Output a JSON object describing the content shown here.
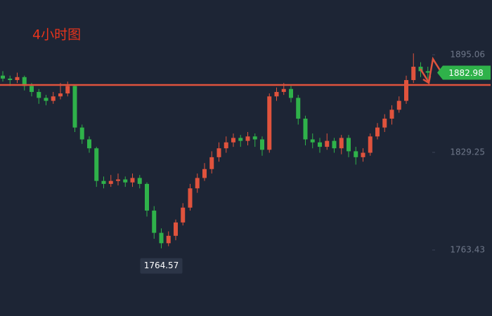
{
  "chart_data": {
    "type": "candlestick",
    "title": "4小时图",
    "open": [
      1881,
      1879,
      1878,
      1880,
      1874,
      1870,
      1866,
      1864,
      1867,
      1869,
      1874,
      1846,
      1838,
      1832,
      1810,
      1808,
      1810,
      1811,
      1809,
      1812,
      1808,
      1790,
      1775,
      1768,
      1773,
      1782,
      1792,
      1805,
      1812,
      1818,
      1826,
      1832,
      1836,
      1839,
      1837,
      1840,
      1838,
      1831,
      1867,
      1870,
      1872,
      1866,
      1852,
      1838,
      1836,
      1833,
      1837,
      1832,
      1839,
      1830,
      1826,
      1829,
      1840,
      1846,
      1852,
      1858,
      1864,
      1878,
      1887,
      1884
    ],
    "high": [
      1884,
      1881,
      1883,
      1881,
      1876,
      1872,
      1868,
      1870,
      1876,
      1877,
      1875,
      1848,
      1840,
      1833,
      1813,
      1814,
      1815,
      1813,
      1815,
      1814,
      1809,
      1793,
      1778,
      1776,
      1784,
      1795,
      1808,
      1815,
      1822,
      1830,
      1836,
      1840,
      1842,
      1841,
      1843,
      1842,
      1840,
      1869,
      1873,
      1876,
      1874,
      1868,
      1854,
      1842,
      1839,
      1842,
      1839,
      1841,
      1841,
      1833,
      1832,
      1842,
      1849,
      1855,
      1861,
      1867,
      1881,
      1896,
      1890,
      1887
    ],
    "low": [
      1877,
      1874,
      1876,
      1871,
      1867,
      1862,
      1861,
      1862,
      1865,
      1867,
      1843,
      1835,
      1829,
      1806,
      1805,
      1806,
      1807,
      1806,
      1806,
      1805,
      1786,
      1771,
      1764.57,
      1766,
      1770,
      1780,
      1790,
      1802,
      1810,
      1815,
      1823,
      1829,
      1833,
      1833,
      1834,
      1833,
      1827,
      1829,
      1864,
      1868,
      1863,
      1848,
      1834,
      1832,
      1829,
      1831,
      1829,
      1828,
      1826,
      1821,
      1823,
      1827,
      1838,
      1843,
      1848,
      1856,
      1862,
      1876,
      1880,
      1879
    ],
    "close": [
      1879,
      1878,
      1880,
      1874,
      1870,
      1866,
      1864,
      1867,
      1869,
      1874,
      1846,
      1838,
      1832,
      1810,
      1808,
      1810,
      1811,
      1809,
      1812,
      1808,
      1790,
      1775,
      1768,
      1773,
      1782,
      1792,
      1805,
      1812,
      1818,
      1826,
      1832,
      1836,
      1839,
      1837,
      1840,
      1838,
      1831,
      1867,
      1870,
      1872,
      1866,
      1852,
      1838,
      1836,
      1833,
      1837,
      1832,
      1839,
      1830,
      1826,
      1829,
      1840,
      1846,
      1852,
      1858,
      1864,
      1878,
      1887,
      1884,
      1882.98
    ],
    "up_color": "#e0533d",
    "down_color": "#2fb24a",
    "hline": 1874.7,
    "hline_color": "#e0533d",
    "ylim": [
      1718.93,
      1931.99
    ],
    "yticks": [
      1895.06,
      1829.25,
      1763.43
    ]
  }
}
